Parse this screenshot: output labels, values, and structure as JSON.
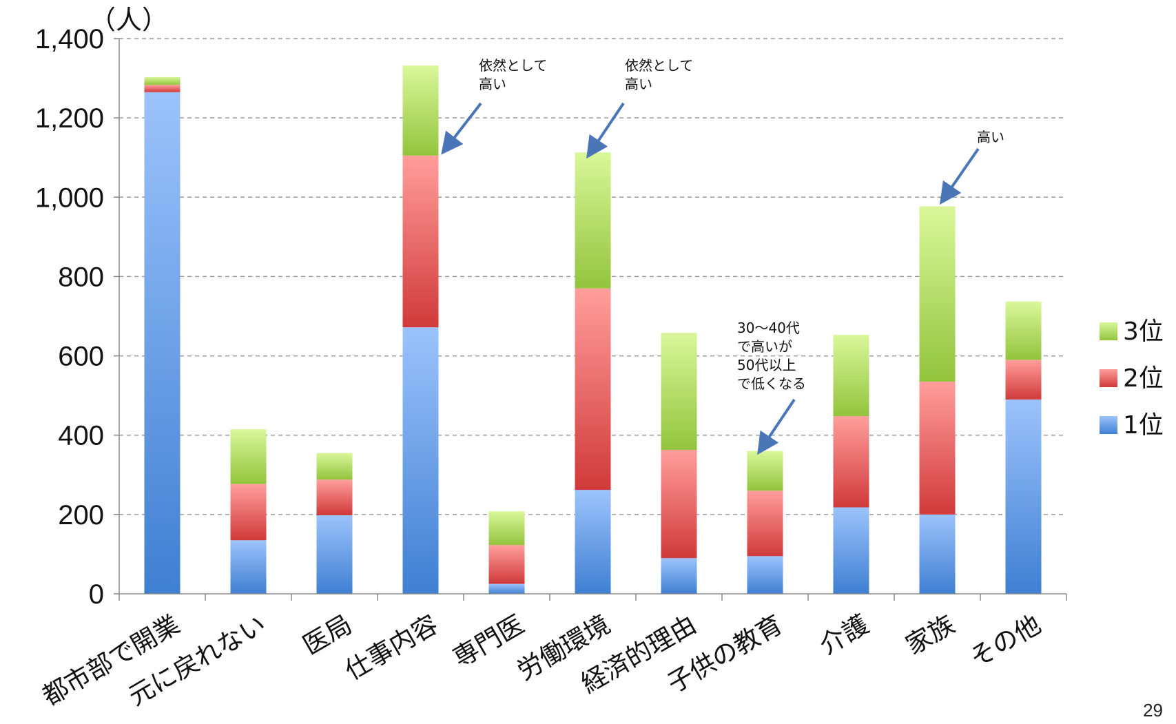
{
  "chart_data": {
    "type": "bar",
    "stacked": true,
    "unit_label": "（人）",
    "categories": [
      "都市部で開業",
      "元に戻れない",
      "医局",
      "仕事内容",
      "専門医",
      "労働環境",
      "経済的理由",
      "子供の教育",
      "介護",
      "家族",
      "その他"
    ],
    "series": [
      {
        "name": "1位",
        "color": "#4a86d8",
        "values": [
          1265,
          135,
          198,
          672,
          25,
          262,
          90,
          95,
          218,
          200,
          490
        ]
      },
      {
        "name": "2位",
        "color": "#d94040",
        "values": [
          18,
          142,
          90,
          433,
          98,
          508,
          273,
          165,
          230,
          335,
          100
        ]
      },
      {
        "name": "3位",
        "color": "#97c93f",
        "values": [
          20,
          138,
          67,
          227,
          85,
          343,
          295,
          100,
          205,
          442,
          147
        ]
      }
    ],
    "ylim": [
      0,
      1400
    ],
    "yticks": [
      0,
      200,
      400,
      600,
      800,
      1000,
      1200,
      1400
    ],
    "ytick_labels": [
      "0",
      "200",
      "400",
      "600",
      "800",
      "1,000",
      "1,200",
      "1,400"
    ],
    "grid": true,
    "legend_position": "right",
    "annotations": [
      {
        "category": "仕事内容",
        "lines": [
          "依然として",
          "高い"
        ]
      },
      {
        "category": "労働環境",
        "lines": [
          "依然として",
          "高い"
        ]
      },
      {
        "category": "子供の教育",
        "lines": [
          "30〜40代",
          "で高いが",
          "50代以上",
          "で低くなる"
        ]
      },
      {
        "category": "家族",
        "lines": [
          "高い"
        ]
      }
    ]
  },
  "page_number": "29"
}
